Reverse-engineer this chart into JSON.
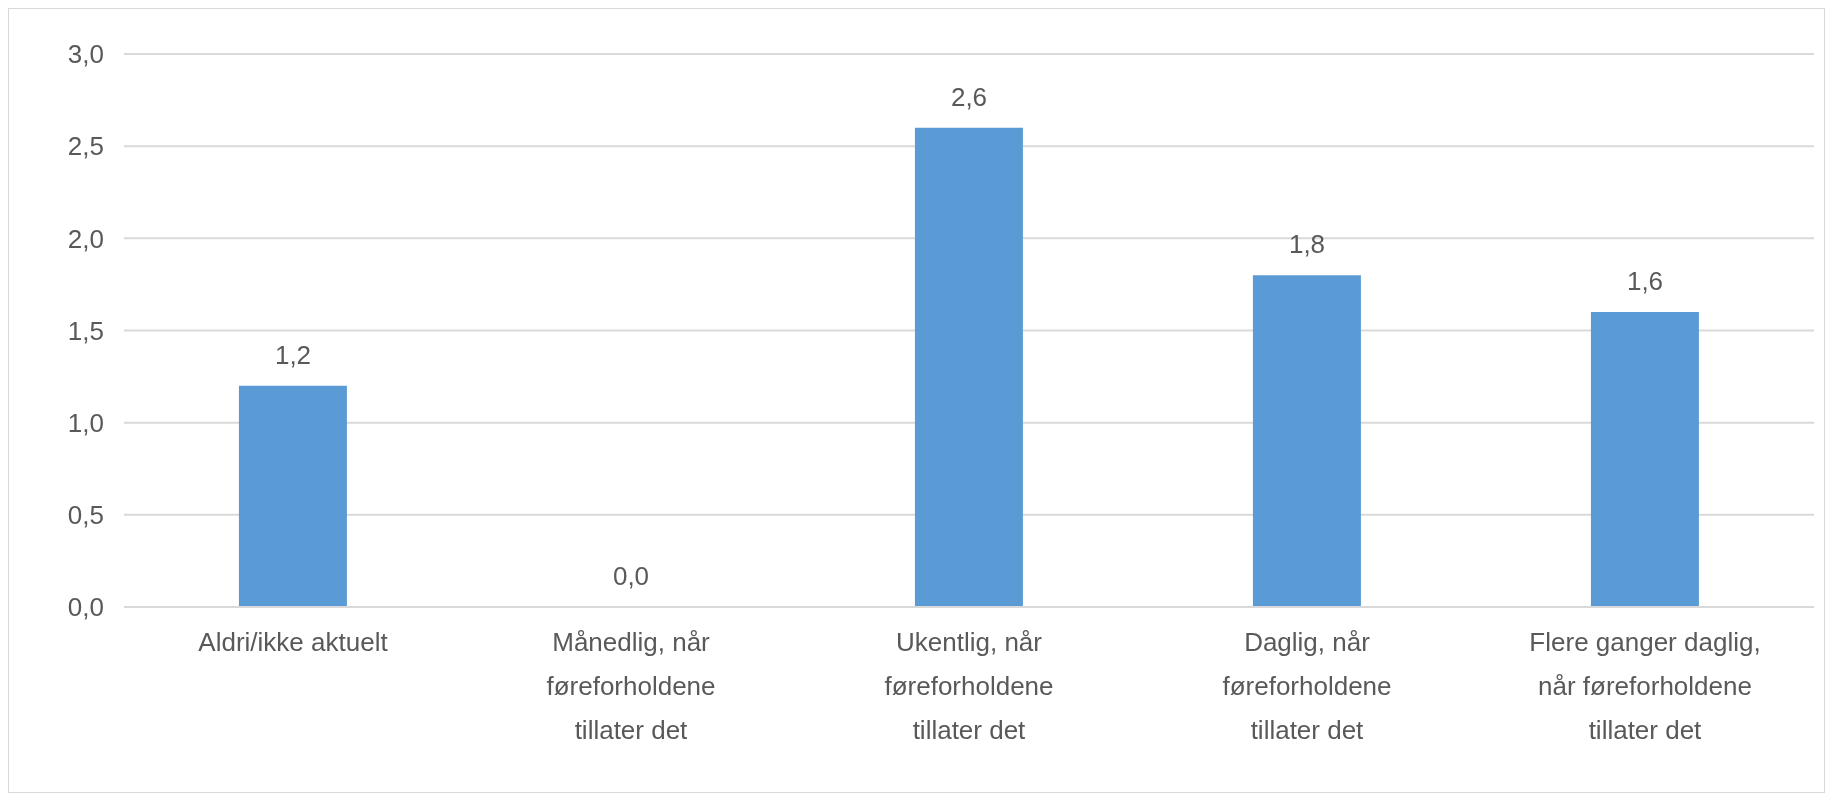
{
  "chart_data": {
    "type": "bar",
    "categories": [
      "Aldri/ikke aktuelt",
      "Månedlig, når føreforholdene tillater det",
      "Ukentlig, når føreforholdene tillater det",
      "Daglig, når føreforholdene tillater det",
      "Flere ganger daglig, når føreforholdene tillater det"
    ],
    "values": [
      1.2,
      0.0,
      2.6,
      1.8,
      1.6
    ],
    "value_labels": [
      "1,2",
      "0,0",
      "2,6",
      "1,8",
      "1,6"
    ],
    "color": "#5b9bd5",
    "ylim": [
      0,
      3
    ],
    "yticks": [
      {
        "value": 0,
        "label": "0,0"
      },
      {
        "value": 0.5,
        "label": "0,5"
      },
      {
        "value": 1,
        "label": "1,0"
      },
      {
        "value": 1.5,
        "label": "1,5"
      },
      {
        "value": 2,
        "label": "2,0"
      },
      {
        "value": 2.5,
        "label": "2,5"
      },
      {
        "value": 3,
        "label": "3,0"
      }
    ],
    "grid": "y"
  }
}
